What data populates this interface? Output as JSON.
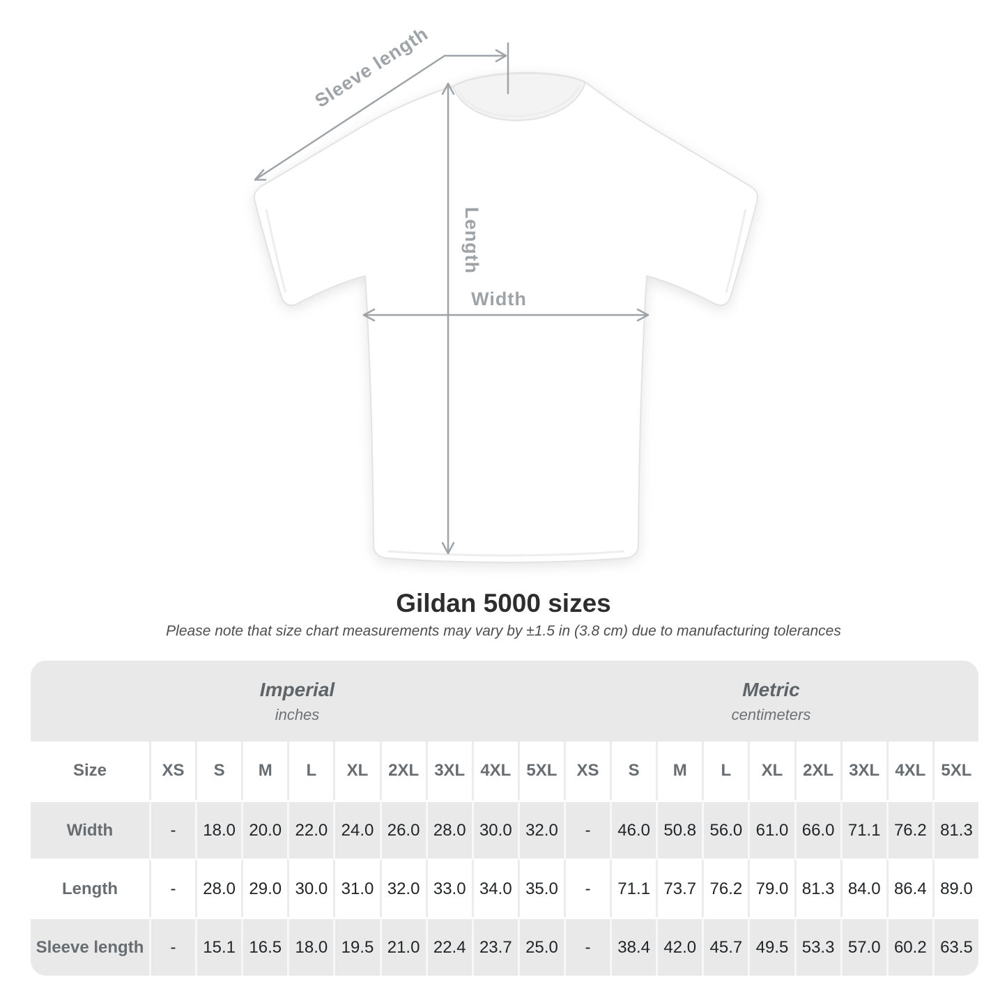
{
  "diagram": {
    "sleeve_label": "Sleeve length",
    "length_label": "Length",
    "width_label": "Width"
  },
  "title": "Gildan 5000 sizes",
  "subtitle": "Please note that size chart measurements may vary by ±1.5 in (3.8 cm) due to manufacturing tolerances",
  "chart_data": {
    "type": "table",
    "title": "Gildan 5000 sizes",
    "size_header": "Size",
    "groups": [
      {
        "label": "Imperial",
        "unit": "inches"
      },
      {
        "label": "Metric",
        "unit": "centimeters"
      }
    ],
    "sizes": [
      "XS",
      "S",
      "M",
      "L",
      "XL",
      "2XL",
      "3XL",
      "4XL",
      "5XL"
    ],
    "rows": [
      {
        "label": "Width",
        "imperial": [
          "-",
          "18.0",
          "20.0",
          "22.0",
          "24.0",
          "26.0",
          "28.0",
          "30.0",
          "32.0"
        ],
        "metric": [
          "-",
          "46.0",
          "50.8",
          "56.0",
          "61.0",
          "66.0",
          "71.1",
          "76.2",
          "81.3"
        ]
      },
      {
        "label": "Length",
        "imperial": [
          "-",
          "28.0",
          "29.0",
          "30.0",
          "31.0",
          "32.0",
          "33.0",
          "34.0",
          "35.0"
        ],
        "metric": [
          "-",
          "71.1",
          "73.7",
          "76.2",
          "79.0",
          "81.3",
          "84.0",
          "86.4",
          "89.0"
        ]
      },
      {
        "label": "Sleeve length",
        "imperial": [
          "-",
          "15.1",
          "16.5",
          "18.0",
          "19.5",
          "21.0",
          "22.4",
          "23.7",
          "25.0"
        ],
        "metric": [
          "-",
          "38.4",
          "42.0",
          "45.7",
          "49.5",
          "53.3",
          "57.0",
          "60.2",
          "63.5"
        ]
      }
    ]
  },
  "colors": {
    "stripe": "#e9e9e9",
    "header_text": "#676d71",
    "value_text": "#222527",
    "arrow": "#9da3a7",
    "title_text": "#2d2d2d"
  }
}
